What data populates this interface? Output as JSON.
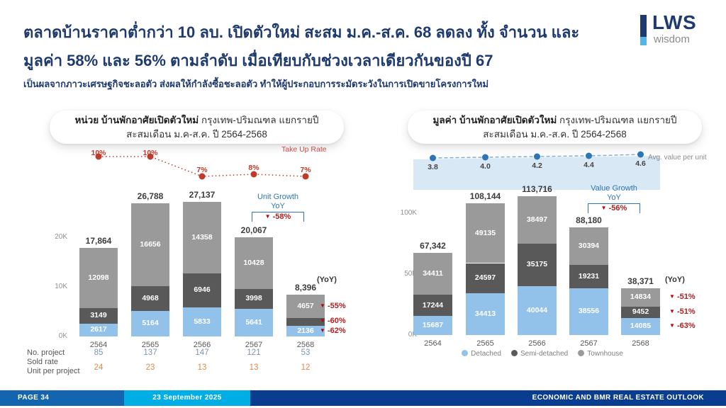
{
  "header": {
    "title_line1": "ตลาดบ้านราคาต่ำกว่า 10 ลบ. เปิดตัวใหม่ สะสม ม.ค.-ส.ค. 68 ลดลง ทั้ง จำนวน และ",
    "title_line2": "มูลค่า 58% และ 56% ตามลำดับ เมื่อเทียบกับช่วงเวลาเดียวกันของปี 67",
    "subtitle": "เป็นผลจากภาวะเศรษฐกิจชะลอตัว ส่งผลให้กำลังซื้อชะลอตัว ทำให้ผู้ประกอบการระมัดระวังในการเปิดขายโครงการใหม่",
    "logo": {
      "name": "LWS",
      "tagline": "wisdom",
      "navy": "#1E3A6E",
      "light_blue": "#56B5E5"
    }
  },
  "panels": [
    {
      "header_bold": "หน่วย บ้านพักอาศัยเปิดตัวใหม่",
      "header_rest": " กรุงเทพ-ปริมณฑล แยกรายปี",
      "header_line2": "สะสมเดือน ม.ค-ส.ค. ปี 2564-2568"
    },
    {
      "header_bold": "มูลค่า บ้านพักอาศัยเปิดตัวใหม่",
      "header_rest": " กรุงเทพ-ปริมณฑล แยกรายปี",
      "header_line2": "สะสมเดือน ม.ค.-ส.ค. ปี 2564-2568"
    }
  ],
  "annotations": {
    "left_growth": {
      "line1": "Unit Growth",
      "line2": "YoY",
      "value": "-58%"
    },
    "right_growth": {
      "line1": "Value Growth",
      "line2": "YoY",
      "value": "-56%"
    },
    "left_yoy_title": "(YoY)",
    "right_yoy_title": "(YoY)"
  },
  "chart_data": [
    {
      "type": "bar",
      "stacked": true,
      "title": "หน่วย บ้านพักอาศัยเปิดตัวใหม่ กรุงเทพ-ปริมณฑล แยกรายปี สะสมเดือน ม.ค-ส.ค. ปี 2564-2568",
      "categories": [
        "2564",
        "2565",
        "2566",
        "2567",
        "2568"
      ],
      "series": [
        {
          "name": "Detached",
          "color": "#92C1E9",
          "values": [
            2617,
            5164,
            5833,
            5641,
            2136
          ]
        },
        {
          "name": "Semi-detached",
          "color": "#595959",
          "values": [
            3149,
            4968,
            6946,
            3998,
            1603
          ]
        },
        {
          "name": "Townhouse",
          "color": "#9A9A9A",
          "values": [
            12098,
            16656,
            14358,
            10428,
            4657
          ]
        }
      ],
      "totals": [
        "17,864",
        "26,788",
        "27,137",
        "20,067",
        "8,396"
      ],
      "ylim": [
        0,
        28000
      ],
      "y_ticks": [
        {
          "label": "0K",
          "value": 0
        },
        {
          "label": "10K",
          "value": 10000
        },
        {
          "label": "20K",
          "value": 20000
        }
      ],
      "line": {
        "name": "Take Up Rate",
        "labels": [
          "10%",
          "10%",
          "7%",
          "8%",
          "7%"
        ]
      },
      "yoy_rows": [
        {
          "series": "Townhouse",
          "value": "-55%"
        },
        {
          "series": "Semi-detached",
          "value": "-60%"
        },
        {
          "series": "Detached",
          "value": "-62%"
        }
      ],
      "stats_rows": [
        {
          "label_lines": [
            "No. project"
          ],
          "values": [
            "85",
            "137",
            "147",
            "121",
            "53"
          ],
          "color": "#7A93B8"
        },
        {
          "label_lines": [
            "Sold rate",
            "Unit per project"
          ],
          "values": [
            "24",
            "23",
            "13",
            "13",
            "12"
          ],
          "color": "#DE8A4E"
        }
      ]
    },
    {
      "type": "bar",
      "stacked": true,
      "title": "มูลค่า บ้านพักอาศัยเปิดตัวใหม่ กรุงเทพ-ปริมณฑล แยกรายปี สะสมเดือน ม.ค.-ส.ค. ปี 2564-2568",
      "categories": [
        "2564",
        "2565",
        "2566",
        "2567",
        "2568"
      ],
      "series": [
        {
          "name": "Detached",
          "color": "#92C1E9",
          "values": [
            15687,
            34413,
            40044,
            38556,
            14085
          ]
        },
        {
          "name": "Semi-detached",
          "color": "#595959",
          "values": [
            17244,
            24597,
            35175,
            19231,
            9452
          ]
        },
        {
          "name": "Townhouse",
          "color": "#9A9A9A",
          "values": [
            34411,
            49135,
            38497,
            30394,
            14834
          ]
        }
      ],
      "totals": [
        "67,342",
        "108,144",
        "113,716",
        "88,180",
        "38,371"
      ],
      "ylim": [
        0,
        120000
      ],
      "y_ticks": [
        {
          "label": "0K",
          "value": 0
        },
        {
          "label": "50K",
          "value": 50000
        },
        {
          "label": "100K",
          "value": 100000
        }
      ],
      "line": {
        "name": "Avg. value per unit",
        "labels": [
          "3.8",
          "4.0",
          "4.2",
          "4.4",
          "4.6"
        ]
      },
      "yoy_rows": [
        {
          "series": "Townhouse",
          "value": "-51%"
        },
        {
          "series": "Semi-detached",
          "value": "-51%"
        },
        {
          "series": "Detached",
          "value": "-63%"
        }
      ],
      "legend": [
        "Detached",
        "Semi-detached",
        "Townhouse"
      ]
    }
  ],
  "footer": {
    "page": "PAGE 34",
    "date": "23 September 2025",
    "right_text": "ECONOMIC AND BMR REAL ESTATE OUTLOOK",
    "page_bg": "#1465AF",
    "date_bg": "#00AEE6",
    "right_bg": "#0A3D8F"
  }
}
